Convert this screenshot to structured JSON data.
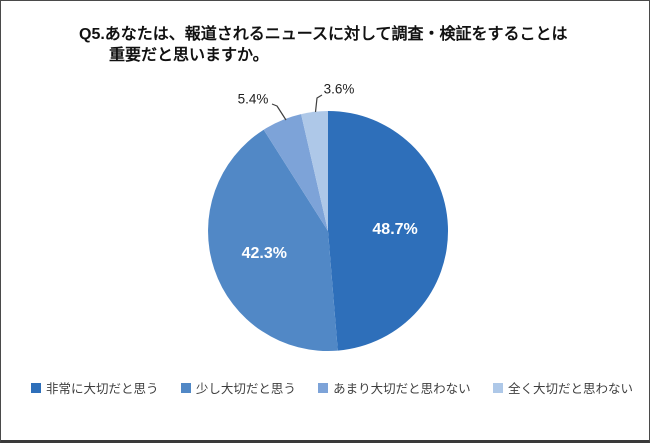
{
  "title": {
    "line1": "Q5.あなたは、報道されるニュースに対して調査・検証をすることは",
    "line2": "重要だと思いますか。"
  },
  "chart_data": {
    "type": "pie",
    "title": "Q5.あなたは、報道されるニュースに対して調査・検証をすることは重要だと思いますか。",
    "categories": [
      "非常に大切だと思う",
      "少し大切だと思う",
      "あまり大切だと思わない",
      "全く大切だと思わない"
    ],
    "values": [
      48.7,
      42.3,
      5.4,
      3.6
    ],
    "labels": [
      "48.7%",
      "42.3%",
      "5.4%",
      "3.6%"
    ],
    "colors": [
      "#2e6fba",
      "#5188c6",
      "#7da3d8",
      "#aec8e8"
    ],
    "start_angle_deg": 0,
    "direction": "clockwise",
    "label_placement": [
      "inside",
      "inside",
      "outside",
      "outside"
    ],
    "legend_position": "bottom"
  },
  "legend": {
    "items": [
      {
        "label": "非常に大切だと思う",
        "color": "#2e6fba"
      },
      {
        "label": "少し大切だと思う",
        "color": "#5188c6"
      },
      {
        "label": "あまり大切だと思わない",
        "color": "#7da3d8"
      },
      {
        "label": "全く大切だと思わない",
        "color": "#aec8e8"
      }
    ]
  }
}
